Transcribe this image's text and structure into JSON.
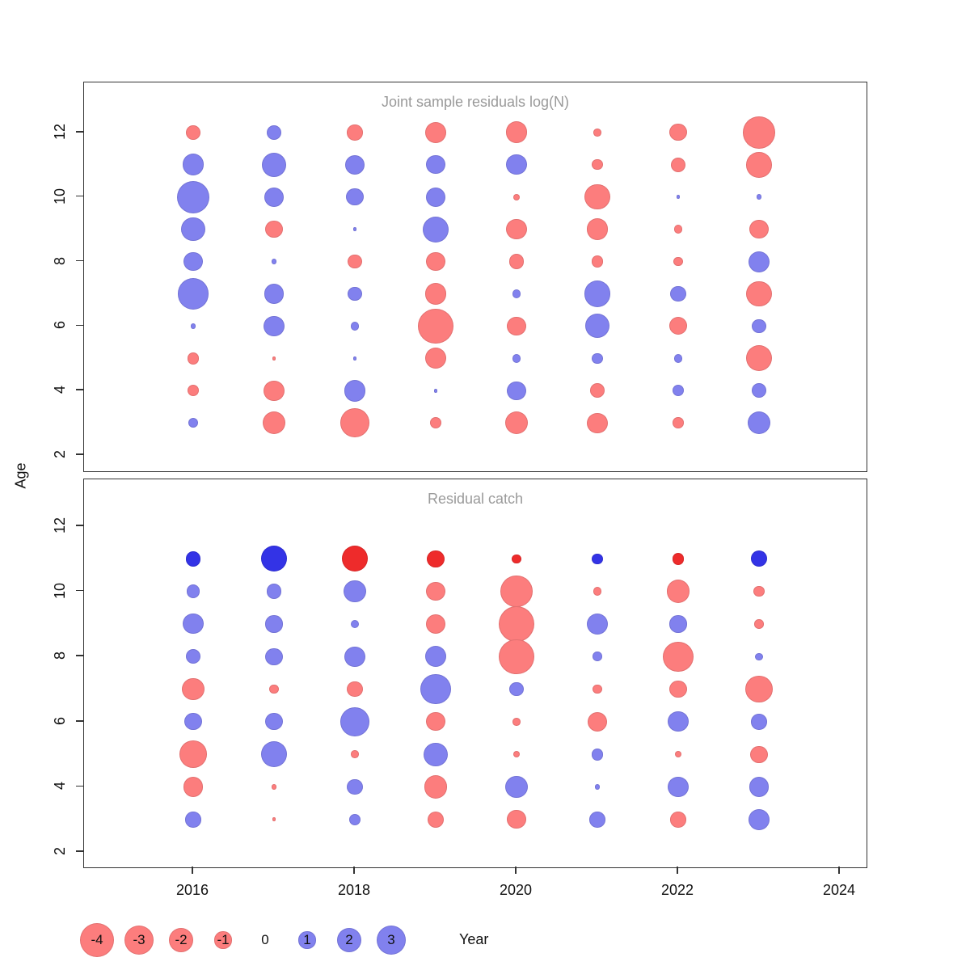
{
  "figure": {
    "ylabel": "Age",
    "xlabel": "Year"
  },
  "colors": {
    "red": "#fc7d7d",
    "blue": "#8181ee",
    "red_strong": "#ee2b2b",
    "blue_strong": "#3333e6"
  },
  "legend": {
    "items": [
      {
        "label": "-4",
        "value": -4
      },
      {
        "label": "-3",
        "value": -3
      },
      {
        "label": "-2",
        "value": -2
      },
      {
        "label": "-1",
        "value": -1
      },
      {
        "label": "0",
        "value": 0
      },
      {
        "label": "1",
        "value": 1
      },
      {
        "label": "2",
        "value": 2
      },
      {
        "label": "3",
        "value": 3
      }
    ]
  },
  "chart_data": [
    {
      "type": "bubble",
      "title": "Joint sample residuals log(N)",
      "xlabel": "Year",
      "ylabel": "Age",
      "x_ticks": [
        2016,
        2018,
        2020,
        2022,
        2024
      ],
      "y_ticks": [
        12,
        10,
        8,
        6,
        4,
        2
      ],
      "xlim": [
        2014.65,
        2024.33
      ],
      "ylim": [
        1.5,
        13.55
      ],
      "legend_note": "red = negative residual, blue = positive residual, area ~ |value|",
      "points": [
        {
          "year": 2016,
          "age": 12,
          "value": -0.7
        },
        {
          "year": 2016,
          "age": 11,
          "value": 1.6
        },
        {
          "year": 2016,
          "age": 10,
          "value": 3.6
        },
        {
          "year": 2016,
          "age": 9,
          "value": 1.9
        },
        {
          "year": 2016,
          "age": 8,
          "value": 1.2
        },
        {
          "year": 2016,
          "age": 7,
          "value": 3.3
        },
        {
          "year": 2016,
          "age": 6,
          "value": 0.1
        },
        {
          "year": 2016,
          "age": 5,
          "value": -0.5
        },
        {
          "year": 2016,
          "age": 4,
          "value": -0.45
        },
        {
          "year": 2016,
          "age": 3,
          "value": 0.35
        },
        {
          "year": 2017,
          "age": 12,
          "value": 0.75
        },
        {
          "year": 2017,
          "age": 11,
          "value": 2.0
        },
        {
          "year": 2017,
          "age": 10,
          "value": 1.3
        },
        {
          "year": 2017,
          "age": 9,
          "value": -1.0
        },
        {
          "year": 2017,
          "age": 8,
          "value": 0.1
        },
        {
          "year": 2017,
          "age": 7,
          "value": 1.3
        },
        {
          "year": 2017,
          "age": 6,
          "value": 1.4
        },
        {
          "year": 2017,
          "age": 5,
          "value": -0.05
        },
        {
          "year": 2017,
          "age": 4,
          "value": -1.4
        },
        {
          "year": 2017,
          "age": 3,
          "value": -1.8
        },
        {
          "year": 2018,
          "age": 12,
          "value": -0.85
        },
        {
          "year": 2018,
          "age": 11,
          "value": 1.3
        },
        {
          "year": 2018,
          "age": 10,
          "value": 1.0
        },
        {
          "year": 2018,
          "age": 9,
          "value": 0.05
        },
        {
          "year": 2018,
          "age": 8,
          "value": -0.7
        },
        {
          "year": 2018,
          "age": 7,
          "value": 0.7
        },
        {
          "year": 2018,
          "age": 6,
          "value": 0.25
        },
        {
          "year": 2018,
          "age": 5,
          "value": 0.05
        },
        {
          "year": 2018,
          "age": 4,
          "value": 1.6
        },
        {
          "year": 2018,
          "age": 3,
          "value": -2.8
        },
        {
          "year": 2019,
          "age": 12,
          "value": -1.5
        },
        {
          "year": 2019,
          "age": 11,
          "value": 1.2
        },
        {
          "year": 2019,
          "age": 10,
          "value": 1.3
        },
        {
          "year": 2019,
          "age": 9,
          "value": 2.3
        },
        {
          "year": 2019,
          "age": 8,
          "value": -1.2
        },
        {
          "year": 2019,
          "age": 7,
          "value": -1.6
        },
        {
          "year": 2019,
          "age": 6,
          "value": -4.2
        },
        {
          "year": 2019,
          "age": 5,
          "value": -1.5
        },
        {
          "year": 2019,
          "age": 4,
          "value": 0.05
        },
        {
          "year": 2019,
          "age": 3,
          "value": -0.45
        },
        {
          "year": 2020,
          "age": 12,
          "value": -1.6
        },
        {
          "year": 2020,
          "age": 11,
          "value": 1.4
        },
        {
          "year": 2020,
          "age": 10,
          "value": -0.15
        },
        {
          "year": 2020,
          "age": 9,
          "value": -1.4
        },
        {
          "year": 2020,
          "age": 8,
          "value": -0.75
        },
        {
          "year": 2020,
          "age": 7,
          "value": 0.25
        },
        {
          "year": 2020,
          "age": 6,
          "value": -1.2
        },
        {
          "year": 2020,
          "age": 5,
          "value": 0.25
        },
        {
          "year": 2020,
          "age": 4,
          "value": 1.2
        },
        {
          "year": 2020,
          "age": 3,
          "value": -1.8
        },
        {
          "year": 2021,
          "age": 12,
          "value": -0.2
        },
        {
          "year": 2021,
          "age": 11,
          "value": -0.4
        },
        {
          "year": 2021,
          "age": 10,
          "value": -2.2
        },
        {
          "year": 2021,
          "age": 9,
          "value": -1.6
        },
        {
          "year": 2021,
          "age": 8,
          "value": -0.45
        },
        {
          "year": 2021,
          "age": 7,
          "value": 2.3
        },
        {
          "year": 2021,
          "age": 6,
          "value": 2.0
        },
        {
          "year": 2021,
          "age": 5,
          "value": 0.4
        },
        {
          "year": 2021,
          "age": 4,
          "value": -0.75
        },
        {
          "year": 2021,
          "age": 3,
          "value": -1.4
        },
        {
          "year": 2022,
          "age": 12,
          "value": -1.0
        },
        {
          "year": 2022,
          "age": 11,
          "value": -0.75
        },
        {
          "year": 2022,
          "age": 10,
          "value": 0.05
        },
        {
          "year": 2022,
          "age": 9,
          "value": -0.25
        },
        {
          "year": 2022,
          "age": 8,
          "value": -0.3
        },
        {
          "year": 2022,
          "age": 7,
          "value": 0.85
        },
        {
          "year": 2022,
          "age": 6,
          "value": -1.1
        },
        {
          "year": 2022,
          "age": 5,
          "value": 0.25
        },
        {
          "year": 2022,
          "age": 4,
          "value": 0.45
        },
        {
          "year": 2022,
          "age": 3,
          "value": -0.4
        },
        {
          "year": 2023,
          "age": 12,
          "value": -3.5
        },
        {
          "year": 2023,
          "age": 11,
          "value": -2.2
        },
        {
          "year": 2023,
          "age": 10,
          "value": 0.1
        },
        {
          "year": 2023,
          "age": 9,
          "value": -1.2
        },
        {
          "year": 2023,
          "age": 8,
          "value": 1.5
        },
        {
          "year": 2023,
          "age": 7,
          "value": -2.2
        },
        {
          "year": 2023,
          "age": 6,
          "value": 0.7
        },
        {
          "year": 2023,
          "age": 5,
          "value": -2.3
        },
        {
          "year": 2023,
          "age": 4,
          "value": 0.7
        },
        {
          "year": 2023,
          "age": 3,
          "value": 1.8
        }
      ]
    },
    {
      "type": "bubble",
      "title": "Residual catch",
      "xlabel": "Year",
      "ylabel": "Age",
      "x_ticks": [
        2016,
        2018,
        2020,
        2022,
        2024
      ],
      "y_ticks": [
        12,
        10,
        8,
        6,
        4,
        2
      ],
      "xlim": [
        2014.65,
        2024.33
      ],
      "ylim": [
        1.53,
        13.44
      ],
      "legend_note": "red = negative residual, blue = positive residual, area ~ |value|; age-11 row drawn fully saturated",
      "points": [
        {
          "year": 2016,
          "age": 11,
          "value": 0.75,
          "strong": true
        },
        {
          "year": 2016,
          "age": 10,
          "value": 0.6
        },
        {
          "year": 2016,
          "age": 9,
          "value": 1.4
        },
        {
          "year": 2016,
          "age": 8,
          "value": 0.75
        },
        {
          "year": 2016,
          "age": 7,
          "value": -1.7
        },
        {
          "year": 2016,
          "age": 6,
          "value": 1.0
        },
        {
          "year": 2016,
          "age": 5,
          "value": -2.5
        },
        {
          "year": 2016,
          "age": 4,
          "value": -1.3
        },
        {
          "year": 2016,
          "age": 3,
          "value": 0.85
        },
        {
          "year": 2017,
          "age": 11,
          "value": 2.3,
          "strong": true
        },
        {
          "year": 2017,
          "age": 10,
          "value": 0.75
        },
        {
          "year": 2017,
          "age": 9,
          "value": 1.0
        },
        {
          "year": 2017,
          "age": 8,
          "value": 1.0
        },
        {
          "year": 2017,
          "age": 7,
          "value": -0.3
        },
        {
          "year": 2017,
          "age": 6,
          "value": 1.0
        },
        {
          "year": 2017,
          "age": 5,
          "value": 2.3
        },
        {
          "year": 2017,
          "age": 4,
          "value": -0.1
        },
        {
          "year": 2017,
          "age": 3,
          "value": -0.05
        },
        {
          "year": 2018,
          "age": 11,
          "value": -2.3,
          "strong": true
        },
        {
          "year": 2018,
          "age": 10,
          "value": 1.7
        },
        {
          "year": 2018,
          "age": 9,
          "value": 0.25
        },
        {
          "year": 2018,
          "age": 8,
          "value": 1.4
        },
        {
          "year": 2018,
          "age": 7,
          "value": -0.85
        },
        {
          "year": 2018,
          "age": 6,
          "value": 2.8
        },
        {
          "year": 2018,
          "age": 5,
          "value": -0.2
        },
        {
          "year": 2018,
          "age": 4,
          "value": 0.85
        },
        {
          "year": 2018,
          "age": 3,
          "value": 0.45
        },
        {
          "year": 2019,
          "age": 11,
          "value": -1.0,
          "strong": true
        },
        {
          "year": 2019,
          "age": 10,
          "value": -1.2
        },
        {
          "year": 2019,
          "age": 9,
          "value": -1.3
        },
        {
          "year": 2019,
          "age": 8,
          "value": 1.5
        },
        {
          "year": 2019,
          "age": 7,
          "value": 3.1
        },
        {
          "year": 2019,
          "age": 6,
          "value": -1.2
        },
        {
          "year": 2019,
          "age": 5,
          "value": 1.9
        },
        {
          "year": 2019,
          "age": 4,
          "value": -1.8
        },
        {
          "year": 2019,
          "age": 3,
          "value": -0.9
        },
        {
          "year": 2020,
          "age": 11,
          "value": -0.3,
          "strong": true
        },
        {
          "year": 2020,
          "age": 10,
          "value": -3.4
        },
        {
          "year": 2020,
          "age": 9,
          "value": -4.3
        },
        {
          "year": 2020,
          "age": 8,
          "value": -4.2
        },
        {
          "year": 2020,
          "age": 7,
          "value": 0.7
        },
        {
          "year": 2020,
          "age": 6,
          "value": -0.2
        },
        {
          "year": 2020,
          "age": 5,
          "value": -0.15
        },
        {
          "year": 2020,
          "age": 4,
          "value": 1.7
        },
        {
          "year": 2020,
          "age": 3,
          "value": -1.2
        },
        {
          "year": 2021,
          "age": 11,
          "value": 0.4,
          "strong": true
        },
        {
          "year": 2021,
          "age": 10,
          "value": -0.25
        },
        {
          "year": 2021,
          "age": 9,
          "value": 1.5
        },
        {
          "year": 2021,
          "age": 8,
          "value": 0.3
        },
        {
          "year": 2021,
          "age": 7,
          "value": -0.3
        },
        {
          "year": 2021,
          "age": 6,
          "value": -1.3
        },
        {
          "year": 2021,
          "age": 5,
          "value": 0.5
        },
        {
          "year": 2021,
          "age": 4,
          "value": 0.1
        },
        {
          "year": 2021,
          "age": 3,
          "value": 0.85
        },
        {
          "year": 2022,
          "age": 11,
          "value": -0.5,
          "strong": true
        },
        {
          "year": 2022,
          "age": 10,
          "value": -1.8
        },
        {
          "year": 2022,
          "age": 9,
          "value": 1.0
        },
        {
          "year": 2022,
          "age": 8,
          "value": -3.1
        },
        {
          "year": 2022,
          "age": 7,
          "value": -1.0
        },
        {
          "year": 2022,
          "age": 6,
          "value": 1.4
        },
        {
          "year": 2022,
          "age": 5,
          "value": -0.15
        },
        {
          "year": 2022,
          "age": 4,
          "value": 1.4
        },
        {
          "year": 2022,
          "age": 3,
          "value": -0.85
        },
        {
          "year": 2023,
          "age": 11,
          "value": 0.9,
          "strong": true
        },
        {
          "year": 2023,
          "age": 10,
          "value": -0.4
        },
        {
          "year": 2023,
          "age": 9,
          "value": -0.3
        },
        {
          "year": 2023,
          "age": 8,
          "value": 0.2
        },
        {
          "year": 2023,
          "age": 7,
          "value": -2.5
        },
        {
          "year": 2023,
          "age": 6,
          "value": 0.85
        },
        {
          "year": 2023,
          "age": 5,
          "value": -1.0
        },
        {
          "year": 2023,
          "age": 4,
          "value": 1.3
        },
        {
          "year": 2023,
          "age": 3,
          "value": 1.5
        }
      ]
    }
  ]
}
